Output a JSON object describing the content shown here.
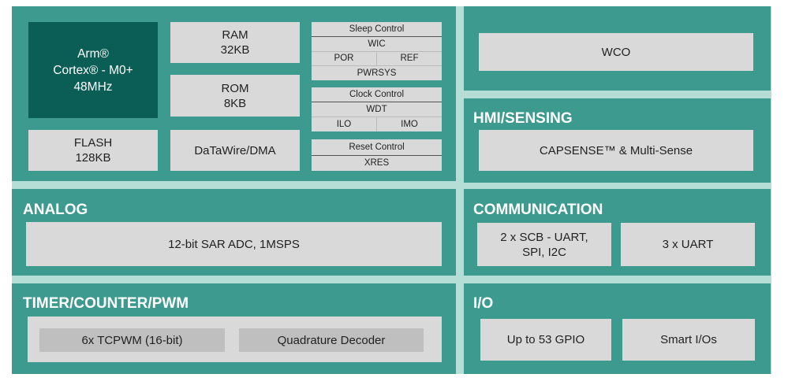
{
  "colors": {
    "panel": "#3d9a8e",
    "cpu": "#0b5e55",
    "block": "#d9d9d9",
    "background": "#b4ded6"
  },
  "core": {
    "cpu": [
      "Arm®",
      "Cortex® - M0+",
      "48MHz"
    ],
    "ram": [
      "RAM",
      "32KB"
    ],
    "rom": [
      "ROM",
      "8KB"
    ],
    "flash": [
      "FLASH",
      "128KB"
    ],
    "dma": "DaTaWire/DMA",
    "sleep": {
      "title": "Sleep Control",
      "wic": "WIC",
      "por": "POR",
      "ref": "REF",
      "pwrsys": "PWRSYS"
    },
    "clock": {
      "title": "Clock Control",
      "wdt": "WDT",
      "ilo": "ILO",
      "imo": "IMO"
    },
    "reset": {
      "title": "Reset Control",
      "xres": "XRES"
    }
  },
  "wco": "WCO",
  "hmi": {
    "title": "HMI/SENSING",
    "block": "CAPSENSE™ & Multi-Sense"
  },
  "analog": {
    "title": "ANALOG",
    "block": "12-bit SAR ADC, 1MSPS"
  },
  "communication": {
    "title": "COMMUNICATION",
    "scb": [
      "2 x SCB - UART,",
      "SPI, I2C"
    ],
    "uart": "3 x UART"
  },
  "timer": {
    "title": "TIMER/COUNTER/PWM",
    "tcpwm": "6x TCPWM (16-bit)",
    "quad": "Quadrature Decoder"
  },
  "io": {
    "title": "I/O",
    "gpio": "Up to 53 GPIO",
    "smart": "Smart I/Os"
  }
}
